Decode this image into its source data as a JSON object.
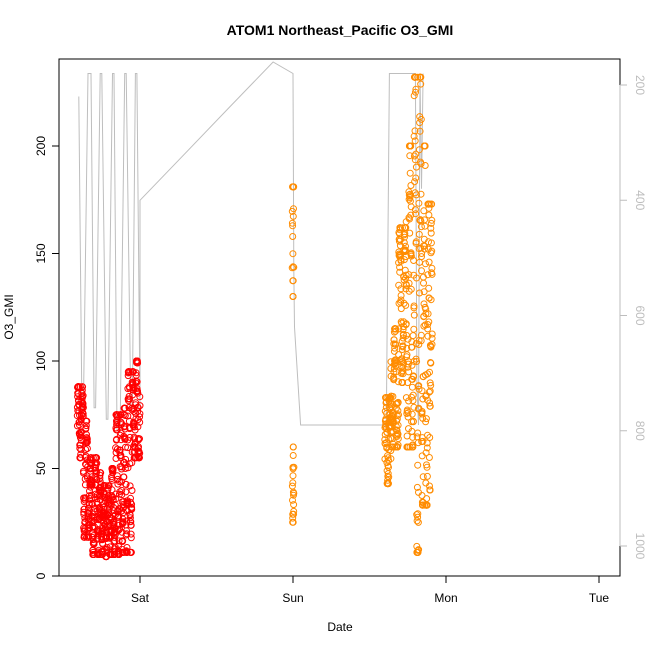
{
  "chart_data": {
    "type": "scatter",
    "title": "ATOM1 Northeast_Pacific O3_GMI",
    "xlabel": "Date",
    "ylabel": "O3_GMI",
    "x_ticks": [
      "Sat",
      "Sun",
      "Mon",
      "Tue"
    ],
    "x_range_days": [
      -0.47,
      3.14
    ],
    "ylim": [
      0,
      240
    ],
    "y_ticks": [
      0,
      50,
      100,
      150,
      200
    ],
    "y2_ticks": [
      200,
      400,
      600,
      800,
      1000
    ],
    "y2_range": [
      180,
      1000
    ],
    "y2_reversed": true,
    "colors": {
      "series_1": "#ff0000",
      "series_2": "#ff8c00",
      "secondary_line": "#bebebe",
      "axis": "#000000",
      "secondary_axis": "#bdbdbd"
    },
    "series": [
      {
        "color": "#ff0000",
        "clusters": [
          {
            "x_start": -0.41,
            "x_end": -0.37,
            "y_min": 55,
            "y_max": 88
          },
          {
            "x_start": -0.37,
            "x_end": -0.33,
            "y_min": 18,
            "y_max": 72
          },
          {
            "x_start": -0.33,
            "x_end": -0.28,
            "y_min": 10,
            "y_max": 55
          },
          {
            "x_start": -0.28,
            "x_end": -0.24,
            "y_min": 10,
            "y_max": 48
          },
          {
            "x_start": -0.24,
            "x_end": -0.2,
            "y_min": 9,
            "y_max": 42
          },
          {
            "x_start": -0.2,
            "x_end": -0.16,
            "y_min": 10,
            "y_max": 50
          },
          {
            "x_start": -0.16,
            "x_end": -0.12,
            "y_min": 10,
            "y_max": 75
          },
          {
            "x_start": -0.12,
            "x_end": -0.08,
            "y_min": 11,
            "y_max": 78
          },
          {
            "x_start": -0.08,
            "x_end": -0.04,
            "y_min": 11,
            "y_max": 95
          },
          {
            "x_start": -0.04,
            "x_end": 0.0,
            "y_min": 55,
            "y_max": 100
          }
        ]
      },
      {
        "color": "#ff8c00",
        "clusters": [
          {
            "x_start": 0.995,
            "x_end": 1.005,
            "y_min": 130,
            "y_max": 181
          },
          {
            "x_start": 0.996,
            "x_end": 1.006,
            "y_min": 25,
            "y_max": 60
          },
          {
            "x_start": 1.6,
            "x_end": 1.64,
            "y_min": 43,
            "y_max": 83
          },
          {
            "x_start": 1.64,
            "x_end": 1.69,
            "y_min": 60,
            "y_max": 115
          },
          {
            "x_start": 1.69,
            "x_end": 1.74,
            "y_min": 90,
            "y_max": 162
          },
          {
            "x_start": 1.74,
            "x_end": 1.79,
            "y_min": 60,
            "y_max": 200
          },
          {
            "x_start": 1.79,
            "x_end": 1.84,
            "y_min": 11,
            "y_max": 232
          },
          {
            "x_start": 1.84,
            "x_end": 1.88,
            "y_min": 33,
            "y_max": 200
          },
          {
            "x_start": 1.88,
            "x_end": 1.91,
            "y_min": 40,
            "y_max": 173
          }
        ]
      }
    ],
    "secondary_line": {
      "color": "#bebebe",
      "x": [
        -0.4,
        -0.38,
        -0.37,
        -0.34,
        -0.32,
        -0.3,
        -0.29,
        -0.26,
        -0.25,
        -0.22,
        -0.21,
        -0.18,
        -0.17,
        -0.15,
        -0.13,
        -0.1,
        -0.09,
        -0.06,
        -0.05,
        -0.03,
        -0.02,
        0.0,
        0.0,
        0.29,
        0.58,
        0.87,
        1.0,
        1.005,
        1.01,
        1.05,
        1.6,
        1.61,
        1.63,
        1.64,
        1.8,
        1.81,
        1.82,
        1.83,
        1.84,
        1.85
      ],
      "y2": [
        220,
        760,
        760,
        180,
        180,
        760,
        760,
        180,
        180,
        780,
        780,
        180,
        180,
        800,
        800,
        180,
        180,
        760,
        760,
        180,
        180,
        760,
        400,
        320,
        240,
        160,
        180,
        520,
        620,
        790,
        790,
        790,
        180,
        180,
        180,
        720,
        790,
        180,
        380,
        180
      ]
    }
  }
}
